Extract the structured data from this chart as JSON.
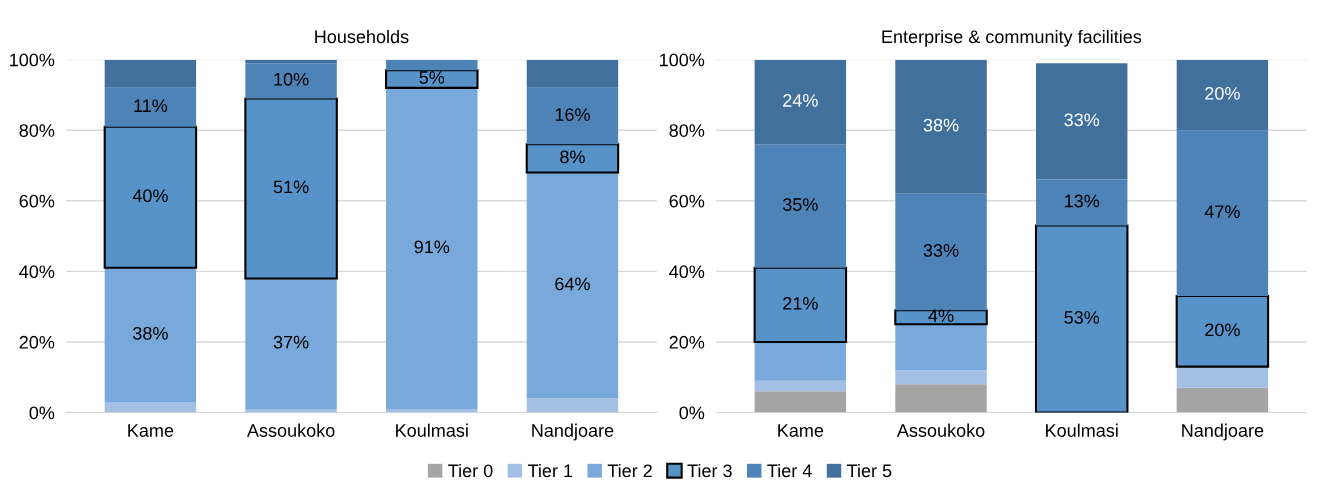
{
  "chart_data": [
    {
      "type": "bar",
      "title": "Households",
      "stacked": true,
      "categories": [
        "Kame",
        "Assoukoko",
        "Koulmasi",
        "Nandjoare"
      ],
      "ylim": [
        0,
        100
      ],
      "yticks": [
        {
          "value": 0,
          "label": "0%"
        },
        {
          "value": 20,
          "label": "20%"
        },
        {
          "value": 40,
          "label": "40%"
        },
        {
          "value": 60,
          "label": "60%"
        },
        {
          "value": 80,
          "label": "80%"
        },
        {
          "value": 100,
          "label": "100%"
        }
      ],
      "grid": "y",
      "legend": "bottom",
      "series": [
        {
          "name": "Tier 0",
          "color": "#a5a5a5",
          "values": [
            0,
            0,
            0,
            0
          ],
          "value_labels": [
            null,
            null,
            null,
            null
          ]
        },
        {
          "name": "Tier 1",
          "color": "#a4bfe4",
          "values": [
            3,
            1,
            1,
            4
          ],
          "value_labels": [
            null,
            null,
            null,
            null
          ]
        },
        {
          "name": "Tier 2",
          "color": "#79a9da",
          "values": [
            38,
            37,
            91,
            64
          ],
          "value_labels": [
            "38%",
            "37%",
            "91%",
            "64%"
          ]
        },
        {
          "name": "Tier 3",
          "color": "#5793c9",
          "line_style": "solid",
          "values": [
            40,
            51,
            5,
            8
          ],
          "value_labels": [
            "40%",
            "51%",
            "5%",
            "8%"
          ]
        },
        {
          "name": "Tier 4",
          "color": "#4e83b8",
          "values": [
            11,
            10,
            3,
            16
          ],
          "value_labels": [
            "11%",
            "10%",
            null,
            "16%"
          ]
        },
        {
          "name": "Tier 5",
          "color": "#41709c",
          "values": [
            8,
            1,
            0,
            8
          ],
          "value_labels": [
            null,
            null,
            null,
            null
          ]
        }
      ]
    },
    {
      "type": "bar",
      "title": "Enterprise & community facilities",
      "stacked": true,
      "categories": [
        "Kame",
        "Assoukoko",
        "Koulmasi",
        "Nandjoare"
      ],
      "ylim": [
        0,
        100
      ],
      "yticks": [
        {
          "value": 0,
          "label": "0%"
        },
        {
          "value": 20,
          "label": "20%"
        },
        {
          "value": 40,
          "label": "40%"
        },
        {
          "value": 60,
          "label": "60%"
        },
        {
          "value": 80,
          "label": "80%"
        },
        {
          "value": 100,
          "label": "100%"
        }
      ],
      "grid": "y",
      "series": [
        {
          "color": "#a5a5a5",
          "values": [
            6,
            8,
            0,
            7
          ],
          "value_labels": [
            null,
            null,
            null,
            null
          ]
        },
        {
          "color": "#a4bfe4",
          "values": [
            3,
            4,
            0,
            6
          ],
          "value_labels": [
            null,
            null,
            null,
            null
          ]
        },
        {
          "color": "#79a9da",
          "values": [
            11,
            13,
            0,
            0
          ],
          "value_labels": [
            null,
            null,
            null,
            null
          ]
        },
        {
          "color": "#5793c9",
          "line_style": "solid",
          "values": [
            21,
            4,
            53,
            20
          ],
          "value_labels": [
            "21%",
            "4%",
            "53%",
            "20%"
          ]
        },
        {
          "color": "#4e83b8",
          "values": [
            35,
            33,
            13,
            47
          ],
          "value_labels": [
            "35%",
            "33%",
            "13%",
            "47%"
          ]
        },
        {
          "color": "#41709c",
          "values": [
            24,
            38,
            33,
            20
          ],
          "value_labels": [
            "24%",
            "38%",
            "33%",
            "20%"
          ]
        }
      ]
    }
  ]
}
